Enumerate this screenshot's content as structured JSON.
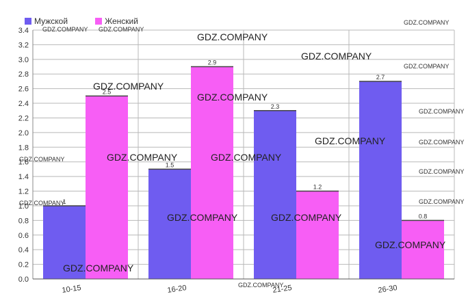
{
  "chart_data": {
    "type": "bar",
    "categories": [
      "10-15",
      "16-20",
      "21-25",
      "26-30"
    ],
    "series": [
      {
        "name": "Мужской",
        "values": [
          1.0,
          1.5,
          2.3,
          2.7
        ],
        "labels": [
          "1",
          "1.5",
          "2.3",
          "2.7"
        ],
        "color": "#6f5cf0"
      },
      {
        "name": "Женский",
        "values": [
          2.5,
          2.9,
          1.2,
          0.8
        ],
        "labels": [
          "2.5",
          "2.9",
          "1.2",
          "0.8"
        ],
        "color": "#f75ef5"
      }
    ],
    "ylim": [
      0,
      3.4
    ],
    "yticks": [
      "0.0",
      "0.2",
      "0.4",
      "0.6",
      "0.8",
      "1.0",
      "1.2",
      "1.4",
      "1.6",
      "1.8",
      "2.0",
      "2.2",
      "2.4",
      "2.6",
      "2.8",
      "3.0",
      "3.2",
      "3.4"
    ],
    "grid": true,
    "legend_position": "top-left"
  },
  "watermark": "GDZ.COMPANY"
}
